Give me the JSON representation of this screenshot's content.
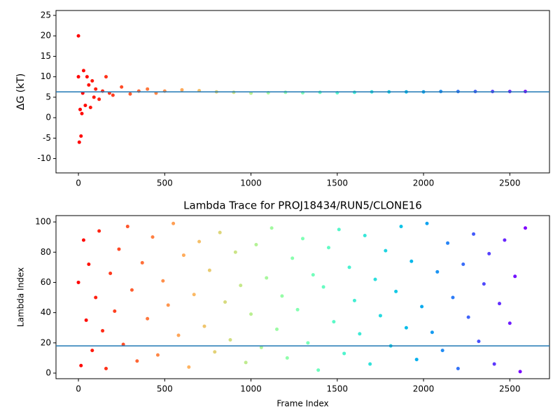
{
  "chart_data": [
    {
      "type": "scatter",
      "ylabel": "ΔG (kT)",
      "colormap": "rainbow_r",
      "x": [
        0,
        0,
        5,
        10,
        15,
        20,
        25,
        30,
        40,
        50,
        60,
        70,
        80,
        90,
        100,
        120,
        140,
        160,
        180,
        200,
        250,
        300,
        350,
        400,
        450,
        500,
        600,
        700,
        800,
        900,
        1000,
        1100,
        1200,
        1300,
        1400,
        1500,
        1600,
        1700,
        1800,
        1900,
        2000,
        2100,
        2200,
        2300,
        2400,
        2500,
        2590
      ],
      "y": [
        20,
        10,
        -6,
        2,
        -4.5,
        1,
        6,
        11.5,
        3,
        10,
        8,
        2.5,
        9,
        5,
        7,
        4.5,
        6.5,
        10,
        6,
        5.5,
        7.5,
        5.8,
        6.5,
        7,
        6,
        6.5,
        6.8,
        6.6,
        6.3,
        6.2,
        6.0,
        6.1,
        6.2,
        6.1,
        6.2,
        6.1,
        6.2,
        6.3,
        6.3,
        6.3,
        6.3,
        6.4,
        6.4,
        6.4,
        6.4,
        6.4,
        6.4
      ],
      "xlim": [
        -130,
        2730
      ],
      "ylim": [
        -13.5,
        26.2
      ],
      "xticks": [
        0,
        500,
        1000,
        1500,
        2000,
        2500
      ],
      "yticks": [
        -10,
        -5,
        0,
        5,
        10,
        15,
        20,
        25
      ],
      "hline": 6.3,
      "hline_color": "#1f77b4"
    },
    {
      "type": "scatter",
      "title": "Lambda Trace for PROJ18434/RUN5/CLONE16",
      "xlabel": "Frame Index",
      "ylabel": "Lambda Index",
      "colormap": "rainbow_r",
      "x": [
        0,
        15,
        30,
        45,
        60,
        80,
        100,
        120,
        140,
        160,
        185,
        210,
        235,
        260,
        285,
        310,
        340,
        370,
        400,
        430,
        460,
        490,
        520,
        550,
        580,
        610,
        640,
        670,
        700,
        730,
        760,
        790,
        820,
        850,
        880,
        910,
        940,
        970,
        1000,
        1030,
        1060,
        1090,
        1120,
        1150,
        1180,
        1210,
        1240,
        1270,
        1300,
        1330,
        1360,
        1390,
        1420,
        1450,
        1480,
        1510,
        1540,
        1570,
        1600,
        1630,
        1660,
        1690,
        1720,
        1750,
        1780,
        1810,
        1840,
        1870,
        1900,
        1930,
        1960,
        1990,
        2020,
        2050,
        2080,
        2110,
        2140,
        2170,
        2200,
        2230,
        2260,
        2290,
        2320,
        2350,
        2380,
        2410,
        2440,
        2470,
        2500,
        2530,
        2560,
        2590
      ],
      "y": [
        60,
        5,
        88,
        35,
        72,
        15,
        50,
        94,
        28,
        3,
        66,
        41,
        82,
        19,
        97,
        55,
        8,
        73,
        36,
        90,
        12,
        61,
        45,
        99,
        25,
        78,
        4,
        52,
        87,
        31,
        68,
        14,
        93,
        47,
        22,
        80,
        58,
        7,
        39,
        85,
        17,
        63,
        96,
        29,
        51,
        10,
        76,
        42,
        89,
        20,
        65,
        2,
        57,
        83,
        34,
        95,
        13,
        70,
        48,
        26,
        91,
        6,
        62,
        38,
        81,
        18,
        54,
        97,
        30,
        74,
        9,
        44,
        99,
        27,
        67,
        15,
        86,
        50,
        3,
        72,
        37,
        92,
        21,
        59,
        79,
        6,
        46,
        88,
        33,
        64,
        1,
        96
      ],
      "xlim": [
        -130,
        2730
      ],
      "ylim": [
        -3.7,
        104.2
      ],
      "xticks": [
        0,
        500,
        1000,
        1500,
        2000,
        2500
      ],
      "yticks": [
        0,
        20,
        40,
        60,
        80,
        100
      ],
      "hline": 18,
      "hline_color": "#1f77b4"
    }
  ]
}
